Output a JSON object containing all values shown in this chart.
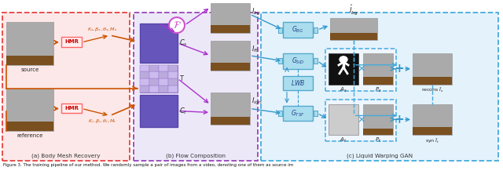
{
  "title": "igure 3. The training pipeline of our method. We randomly sample a pair of images from a video, denoting one of them as source im",
  "section_a_label": "(a) Body Mesh Recovery",
  "section_b_label": "(b) Flow Composition",
  "section_c_label": "(c) Liquid Warping GAN",
  "bg_color": "#ffffff",
  "section_a_bg": "#fce8e8",
  "section_b_bg": "#ede8f8",
  "section_c_bg": "#e4f2fc",
  "red_dashed": "#e84040",
  "purple_dashed": "#9944bb",
  "blue_dashed": "#44aadd",
  "orange_arrow": "#cc5500",
  "purple_arrow": "#aa33cc",
  "blue_arrow": "#3399cc",
  "hmr_color": "#ff6666",
  "cs_color": "#7766cc",
  "gbg_color": "#77bbdd",
  "f_circle": "#cc55cc"
}
